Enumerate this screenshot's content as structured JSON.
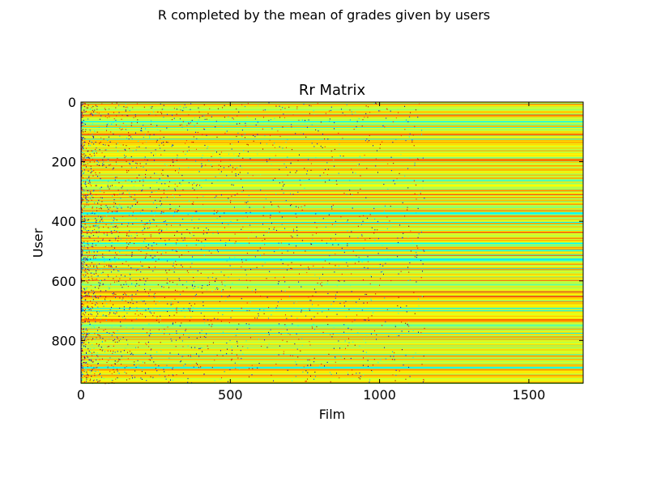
{
  "chart_data": {
    "type": "heatmap",
    "suptitle": "R completed by the mean of grades given by users",
    "title": "Rr Matrix",
    "xlabel": "Film",
    "ylabel": "User",
    "x_range": [
      0,
      1682
    ],
    "y_range": [
      0,
      943
    ],
    "y_inverted": true,
    "x_ticks": [
      0,
      500,
      1000,
      1500
    ],
    "x_tick_labels": [
      "0",
      "500",
      "1000",
      "1500"
    ],
    "y_ticks": [
      0,
      200,
      400,
      600,
      800
    ],
    "y_tick_labels": [
      "0",
      "200",
      "400",
      "600",
      "800"
    ],
    "colormap": "jet",
    "value_range": [
      1,
      5
    ],
    "dominant_colors": [
      "#ff9a00",
      "#ffc000",
      "#ff4400",
      "#f8ff00",
      "#90ff60",
      "#c80000"
    ],
    "grid": false,
    "legend": "none",
    "row_bands": [
      {
        "user": 108,
        "value": 4.1
      },
      {
        "user": 195,
        "value": 4.0
      },
      {
        "user": 212,
        "value": 3.9
      },
      {
        "user": 240,
        "value": 3.2
      },
      {
        "user": 262,
        "value": 2.6
      },
      {
        "user": 318,
        "value": 3.9
      },
      {
        "user": 372,
        "value": 2.5
      },
      {
        "user": 405,
        "value": 3.9
      },
      {
        "user": 435,
        "value": 4.2
      },
      {
        "user": 455,
        "value": 4.0
      },
      {
        "user": 472,
        "value": 2.5
      },
      {
        "user": 525,
        "value": 2.4
      },
      {
        "user": 560,
        "value": 3.9
      },
      {
        "user": 634,
        "value": 4.1
      },
      {
        "user": 650,
        "value": 4.3
      },
      {
        "user": 668,
        "value": 3.9
      },
      {
        "user": 690,
        "value": 2.6
      },
      {
        "user": 735,
        "value": 3.8
      },
      {
        "user": 760,
        "value": 3.8
      },
      {
        "user": 895,
        "value": 3.9
      }
    ]
  }
}
